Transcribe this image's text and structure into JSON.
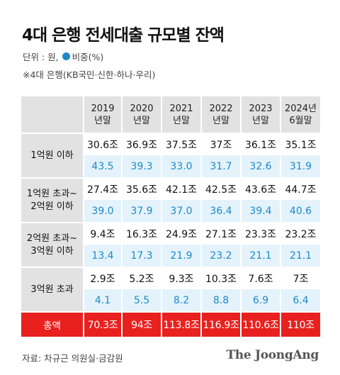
{
  "title": "4대 은행 전세대출 규모별 잔액",
  "legend": {
    "unit": "단위 : 원,",
    "ratio_label": "비중(%)",
    "ratio_color": "#1e88c8"
  },
  "note": "※4대 은행(KB국민·신한·하나·우리)",
  "source": "자료: 차규근 의원실·금감원",
  "brand": "The JoongAng",
  "colors": {
    "total_bg": "#e8211f",
    "pct_text": "#1e88c8",
    "pct_bg": "#e4f3fb",
    "header_bg": "#e2e2e2"
  },
  "chart_data": {
    "type": "table",
    "title": "4대 은행 전세대출 규모별 잔액",
    "columns": [
      {
        "line1": "2019",
        "line2": "년말"
      },
      {
        "line1": "2020",
        "line2": "년말"
      },
      {
        "line1": "2021",
        "line2": "년말"
      },
      {
        "line1": "2022",
        "line2": "년말"
      },
      {
        "line1": "2023",
        "line2": "년말"
      },
      {
        "line1": "2024년",
        "line2": "6월말"
      }
    ],
    "rows": [
      {
        "label_lines": [
          "1억원 이하"
        ],
        "amounts": [
          "30.6조",
          "36.9조",
          "37.5조",
          "37조",
          "36.1조",
          "35.1조"
        ],
        "ratios": [
          "43.5",
          "39.3",
          "33.0",
          "31.7",
          "32.6",
          "31.9"
        ]
      },
      {
        "label_lines": [
          "1억원 초과~",
          "2억원 이하"
        ],
        "amounts": [
          "27.4조",
          "35.6조",
          "42.1조",
          "42.5조",
          "43.6조",
          "44.7조"
        ],
        "ratios": [
          "39.0",
          "37.9",
          "37.0",
          "36.4",
          "39.4",
          "40.6"
        ]
      },
      {
        "label_lines": [
          "2억원 초과~",
          "3억원 이하"
        ],
        "amounts": [
          "9.4조",
          "16.3조",
          "24.9조",
          "27.1조",
          "23.3조",
          "23.2조"
        ],
        "ratios": [
          "13.4",
          "17.3",
          "21.9",
          "23.2",
          "21.1",
          "21.1"
        ]
      },
      {
        "label_lines": [
          "3억원 초과"
        ],
        "amounts": [
          "2.9조",
          "5.2조",
          "9.3조",
          "10.3조",
          "7.6조",
          "7조"
        ],
        "ratios": [
          "4.1",
          "5.5",
          "8.2",
          "8.8",
          "6.9",
          "6.4"
        ]
      }
    ],
    "total": {
      "label": "총액",
      "values": [
        "70.3조",
        "94조",
        "113.8조",
        "116.9조",
        "110.6조",
        "110조"
      ]
    }
  }
}
